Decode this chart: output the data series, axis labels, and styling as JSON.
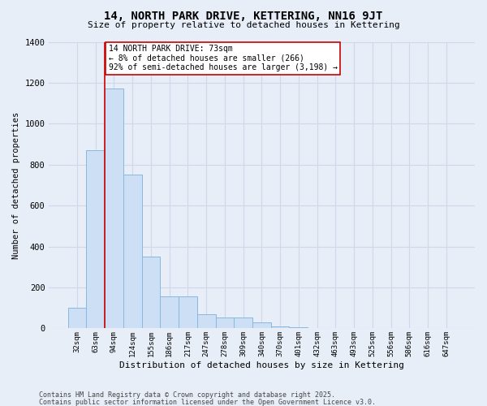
{
  "title": "14, NORTH PARK DRIVE, KETTERING, NN16 9JT",
  "subtitle": "Size of property relative to detached houses in Kettering",
  "xlabel": "Distribution of detached houses by size in Kettering",
  "ylabel": "Number of detached properties",
  "categories": [
    "32sqm",
    "63sqm",
    "94sqm",
    "124sqm",
    "155sqm",
    "186sqm",
    "217sqm",
    "247sqm",
    "278sqm",
    "309sqm",
    "340sqm",
    "370sqm",
    "401sqm",
    "432sqm",
    "463sqm",
    "493sqm",
    "525sqm",
    "556sqm",
    "586sqm",
    "616sqm",
    "647sqm"
  ],
  "values": [
    100,
    870,
    1170,
    750,
    350,
    155,
    155,
    70,
    55,
    55,
    30,
    10,
    5,
    2,
    1,
    1,
    1,
    0,
    0,
    0,
    0
  ],
  "bar_color": "#ccdff5",
  "bar_edge_color": "#89b8de",
  "background_color": "#e8eef8",
  "grid_color": "#d0d8e8",
  "annotation_line_color": "#cc0000",
  "annotation_box_color": "#ffffff",
  "annotation_box_edge": "#cc0000",
  "annotation_text": "14 NORTH PARK DRIVE: 73sqm\n← 8% of detached houses are smaller (266)\n92% of semi-detached houses are larger (3,198) →",
  "ylim": [
    0,
    1400
  ],
  "yticks": [
    0,
    200,
    400,
    600,
    800,
    1000,
    1200,
    1400
  ],
  "footer1": "Contains HM Land Registry data © Crown copyright and database right 2025.",
  "footer2": "Contains public sector information licensed under the Open Government Licence v3.0."
}
